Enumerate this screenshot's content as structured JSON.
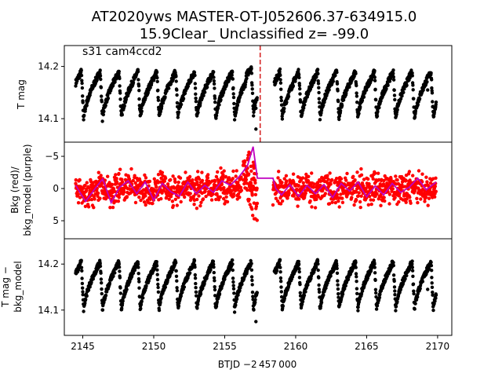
{
  "title": {
    "line1": "AT2020yws  MASTER-OT-J052606.37-634915.0",
    "line2": "15.9Clear_ Unclassified z= -99.0"
  },
  "sector_label": "s31 cam4ccd2",
  "xlabel": "BTJD −2 457 000",
  "colors": {
    "tmag": "#000000",
    "bkg": "#ff0000",
    "bkg_model": "#bf00bf",
    "marker_line": "#d62728"
  },
  "chart_data": [
    {
      "id": "tmag",
      "type": "scatter",
      "ylabel": "T mag",
      "y_inverted": true,
      "xlim": [
        2143.7,
        2171.0
      ],
      "ylim": [
        14.24,
        14.055
      ],
      "yticks": [
        14.1,
        14.2
      ],
      "ytick_labels": [
        "14.1",
        "14.2"
      ],
      "vertical_line_x": 2157.5,
      "period_days": 1.33,
      "gaps": [
        [
          2157.4,
          2158.5
        ]
      ],
      "outliers": [
        {
          "x": 2157.2,
          "y": 14.08
        },
        {
          "x": 2157.2,
          "y": 14.12
        },
        {
          "x": 2169.3,
          "y": 14.155
        }
      ],
      "segments": [
        {
          "x": [
            2144.5,
            2145.0,
            2145.6,
            2146.2,
            2146.8,
            2147.4,
            2148.0,
            2148.6,
            2149.2,
            2149.8,
            2150.4,
            2151.0,
            2151.6,
            2152.2,
            2152.8,
            2153.4,
            2154.0,
            2154.6,
            2155.2,
            2155.8,
            2156.4,
            2157.0
          ],
          "y": [
            14.2,
            14.09,
            14.18,
            14.21,
            14.1,
            14.17,
            14.22,
            14.13,
            14.09,
            14.19,
            14.14,
            14.1,
            14.2,
            14.12,
            14.1,
            14.2,
            14.15,
            14.1,
            14.21,
            14.13,
            14.1,
            14.22
          ]
        },
        {
          "x": [
            2158.5,
            2159.0,
            2159.6,
            2160.2,
            2160.8,
            2161.4,
            2162.0,
            2162.6,
            2163.2,
            2163.8,
            2164.4,
            2165.0,
            2165.6,
            2166.2,
            2166.8,
            2167.4,
            2168.0,
            2168.6,
            2169.2,
            2169.9
          ],
          "y": [
            14.19,
            14.09,
            14.17,
            14.2,
            14.1,
            14.16,
            14.21,
            14.12,
            14.1,
            14.2,
            14.14,
            14.1,
            14.2,
            14.12,
            14.1,
            14.19,
            14.16,
            14.1,
            14.2,
            14.22
          ]
        }
      ]
    },
    {
      "id": "bkg",
      "type": "scatter",
      "ylabel_line1": "Bkg (red)/",
      "ylabel_line2": "bkg_model (purple)",
      "xlim": [
        2143.7,
        2171.0
      ],
      "ylim": [
        -7.2,
        7.8
      ],
      "yticks": [
        5,
        0,
        -5
      ],
      "ytick_labels": [
        "5",
        "0",
        "−5"
      ],
      "scatter_spread": 2.5,
      "model_line": {
        "x": [
          2144.5,
          2145.2,
          2145.8,
          2146.4,
          2147.0,
          2147.6,
          2148.2,
          2148.8,
          2149.4,
          2150.0,
          2150.6,
          2151.2,
          2151.8,
          2152.4,
          2153.0,
          2153.6,
          2154.2,
          2154.8,
          2155.4,
          2156.0,
          2156.6,
          2157.0,
          2157.3,
          2158.4,
          2158.6,
          2159.0,
          2159.6,
          2160.2,
          2160.8,
          2161.4,
          2162.0,
          2162.6,
          2163.2,
          2163.8,
          2164.4,
          2165.0,
          2165.6,
          2166.2,
          2166.8,
          2167.4,
          2168.0,
          2168.6,
          2169.2,
          2169.9
        ],
        "y": [
          -0.5,
          2.0,
          0.2,
          -1.5,
          2.2,
          -0.2,
          -1.2,
          0.8,
          -1.0,
          1.8,
          -0.8,
          0.5,
          1.2,
          -1.0,
          0.8,
          -0.5,
          0.6,
          -1.2,
          -0.5,
          -1.8,
          -3.5,
          -6.5,
          -1.6,
          -1.6,
          0.0,
          1.0,
          -0.6,
          1.2,
          -0.5,
          0.8,
          -0.6,
          1.4,
          -0.8,
          0.4,
          -1.0,
          1.3,
          -0.4,
          1.0,
          -0.8,
          0.6,
          -0.2,
          -1.6,
          0.2,
          -1.0
        ]
      },
      "excursion": {
        "x": [
          2156.3,
          2156.8,
          2157.3
        ],
        "y_low": [
          -4.5,
          -6.5,
          -2.0
        ],
        "y_high": [
          -1.0,
          3.0,
          6.8
        ]
      }
    },
    {
      "id": "detrended",
      "type": "scatter",
      "ylabel_line1": "T mag −",
      "ylabel_line2": "bkg_model",
      "y_inverted": true,
      "xlim": [
        2143.7,
        2171.0
      ],
      "ylim": [
        14.255,
        14.045
      ],
      "yticks": [
        14.1,
        14.2
      ],
      "ytick_labels": [
        "14.1",
        "14.2"
      ],
      "xticks": [
        2145,
        2150,
        2155,
        2160,
        2165,
        2170
      ],
      "xtick_labels": [
        "2145",
        "2150",
        "2155",
        "2160",
        "2165",
        "2170"
      ],
      "outliers": [
        {
          "x": 2157.2,
          "y": 14.075
        },
        {
          "x": 2157.2,
          "y": 14.135
        },
        {
          "x": 2169.3,
          "y": 14.145
        }
      ]
    }
  ]
}
